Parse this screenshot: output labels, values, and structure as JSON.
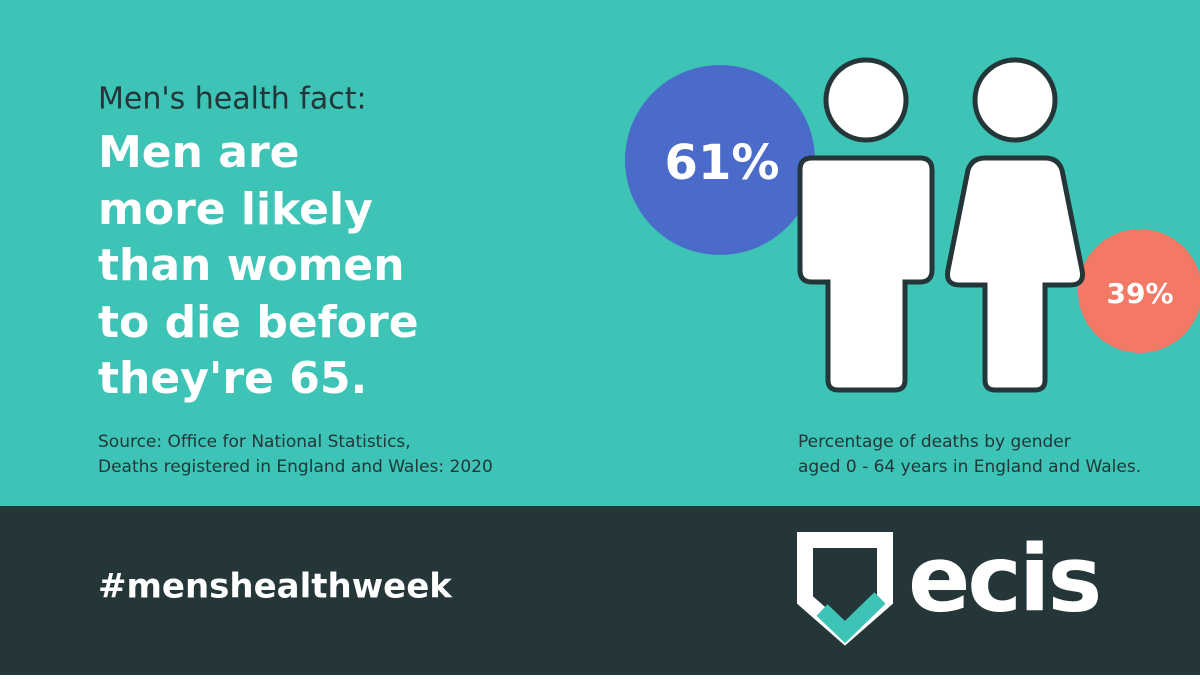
{
  "header": {
    "kicker": "Men's health fact:",
    "headline": [
      "Men are",
      "more likely",
      "than women",
      "to die before",
      "they're 65."
    ]
  },
  "source": [
    "Source: Office for National Statistics,",
    "Deaths registered in England and Wales: 2020"
  ],
  "stats": {
    "men": "61%",
    "women": "39%"
  },
  "caption": [
    "Percentage of deaths by gender",
    "aged 0 - 64 years in England and Wales."
  ],
  "footer": {
    "hashtag": "#menshealthweek",
    "logo": "ecis"
  }
}
